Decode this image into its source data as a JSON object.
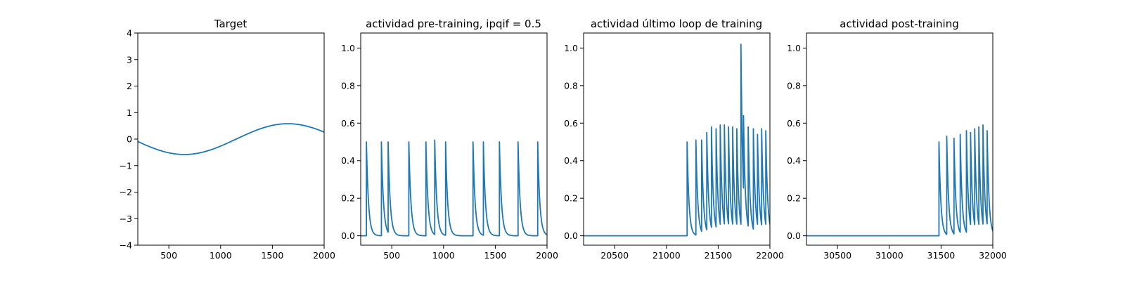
{
  "figure": {
    "background": "#ffffff",
    "line_color": "#1f77b4"
  },
  "chart_data": [
    {
      "type": "line",
      "title": "Target",
      "xlim": [
        200,
        2000
      ],
      "ylim": [
        -4,
        4
      ],
      "xticks": [
        500,
        1000,
        1500,
        2000
      ],
      "yticks": [
        -4,
        -3,
        -2,
        -1,
        0,
        1,
        2,
        3,
        4
      ],
      "signal": {
        "kind": "sine",
        "x_start": 200,
        "x_end": 2000,
        "amplitude": 0.58,
        "period": 2000,
        "phase_origin": 150
      }
    },
    {
      "type": "line",
      "title": "actividad pre-training, ipqif = 0.5",
      "xlim": [
        200,
        2000
      ],
      "ylim": [
        -0.05,
        1.08
      ],
      "xticks": [
        500,
        1000,
        1500,
        2000
      ],
      "yticks": [
        0.0,
        0.2,
        0.4,
        0.6,
        0.8,
        1.0
      ],
      "signal": {
        "kind": "spikes",
        "x_start": 200,
        "x_end": 2000,
        "decay": 20,
        "spike_times": [
          255,
          400,
          465,
          665,
          830,
          915,
          1020,
          1285,
          1385,
          1540,
          1720,
          1910
        ],
        "spike_peaks": [
          0.5,
          0.5,
          0.5,
          0.5,
          0.5,
          0.51,
          0.5,
          0.5,
          0.5,
          0.5,
          0.5,
          0.5
        ]
      }
    },
    {
      "type": "line",
      "title": "actividad último loop de training",
      "xlim": [
        20200,
        22000
      ],
      "ylim": [
        -0.05,
        1.08
      ],
      "xticks": [
        20500,
        21000,
        21500,
        22000
      ],
      "yticks": [
        0.0,
        0.2,
        0.4,
        0.6,
        0.8,
        1.0
      ],
      "signal": {
        "kind": "spikes",
        "x_start": 20200,
        "x_end": 22000,
        "decay": 18,
        "spike_times": [
          21200,
          21285,
          21340,
          21390,
          21435,
          21480,
          21520,
          21560,
          21600,
          21640,
          21680,
          21720,
          21745,
          21790,
          21840,
          21880,
          21920,
          21960
        ],
        "spike_peaks": [
          0.5,
          0.51,
          0.51,
          0.55,
          0.58,
          0.57,
          0.59,
          0.59,
          0.58,
          0.58,
          0.57,
          1.02,
          0.64,
          0.58,
          0.57,
          0.54,
          0.57,
          0.56
        ]
      }
    },
    {
      "type": "line",
      "title": "actividad post-training",
      "xlim": [
        30200,
        32000
      ],
      "ylim": [
        -0.05,
        1.08
      ],
      "xticks": [
        30500,
        31000,
        31500,
        32000
      ],
      "yticks": [
        0.0,
        0.2,
        0.4,
        0.6,
        0.8,
        1.0
      ],
      "signal": {
        "kind": "spikes",
        "x_start": 30200,
        "x_end": 32000,
        "decay": 18,
        "spike_times": [
          31480,
          31555,
          31625,
          31685,
          31745,
          31785,
          31825,
          31865,
          31905,
          31945
        ],
        "spike_peaks": [
          0.5,
          0.53,
          0.52,
          0.54,
          0.56,
          0.55,
          0.57,
          0.58,
          0.59,
          0.56
        ]
      }
    }
  ]
}
